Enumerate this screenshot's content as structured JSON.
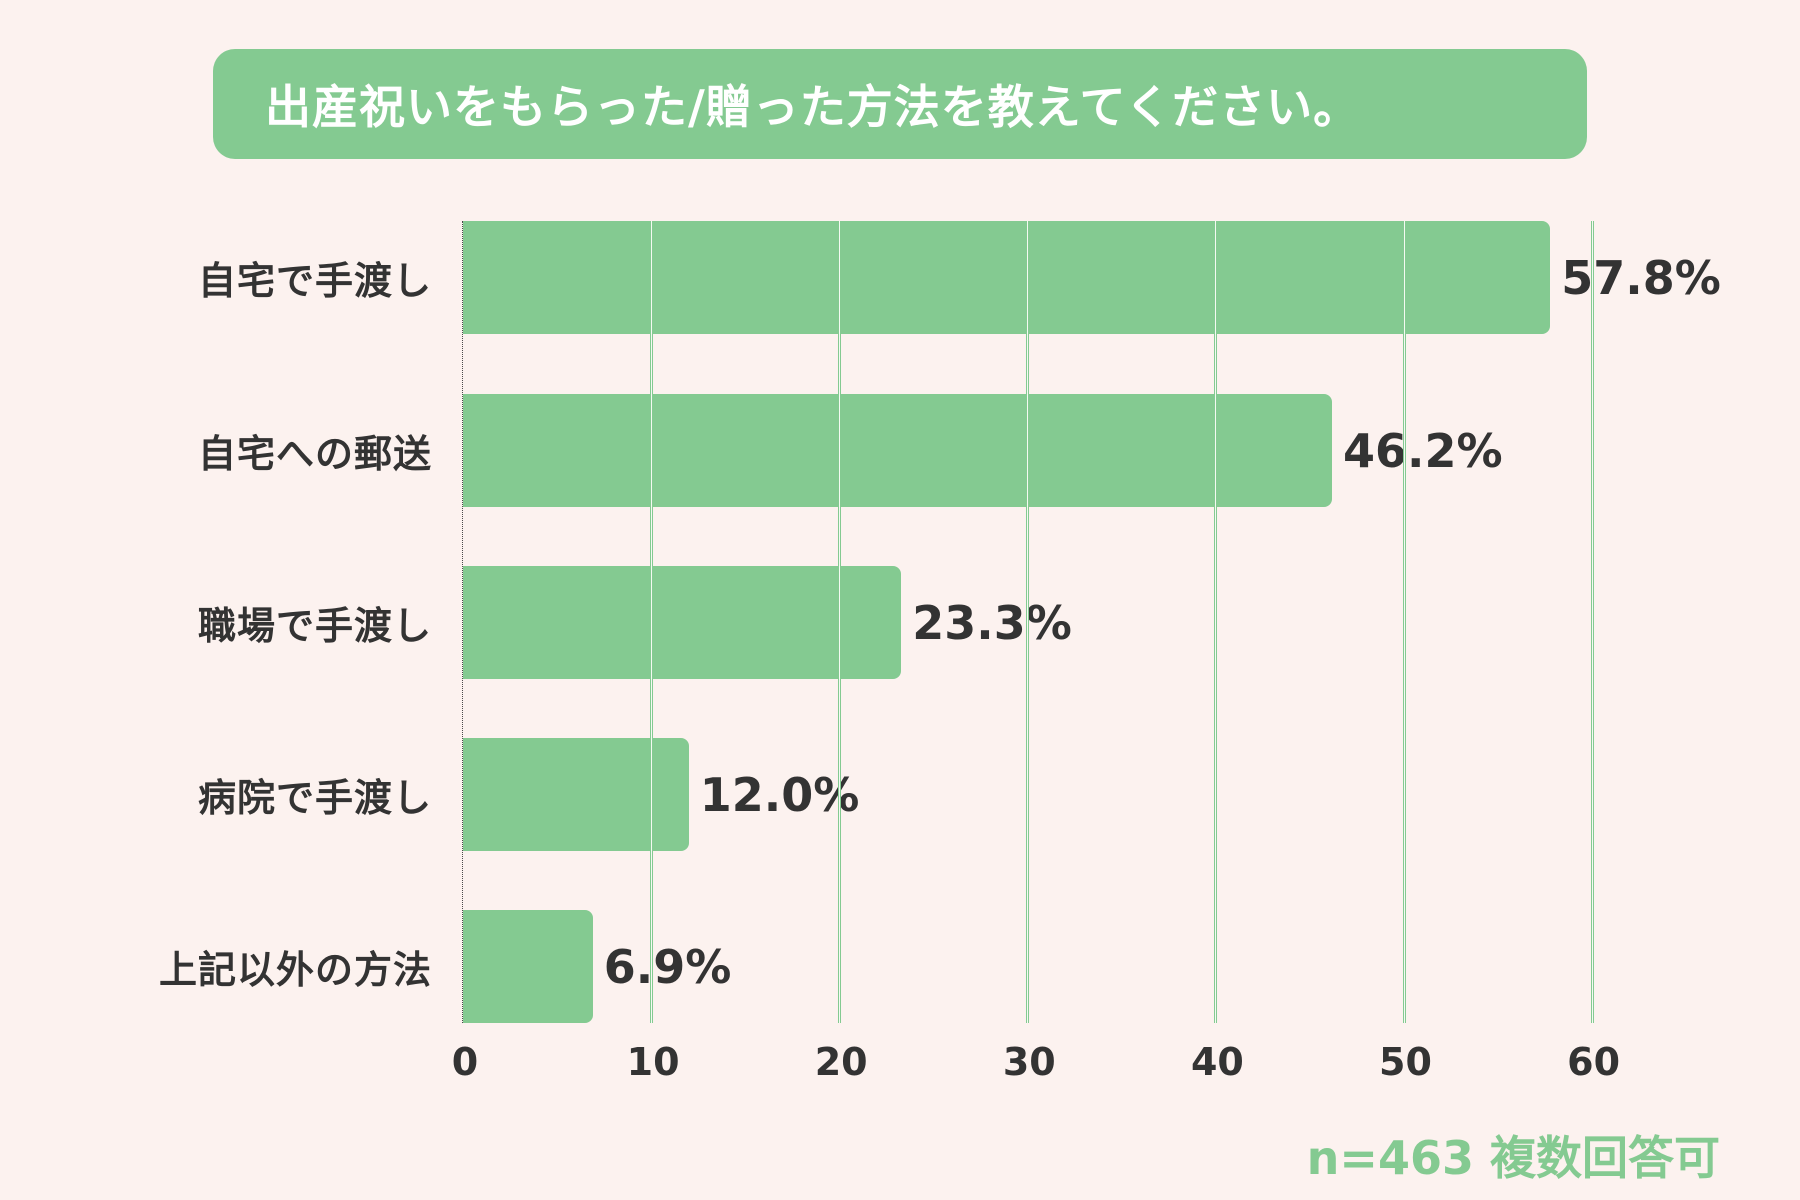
{
  "title": "出産祝いをもらった/贈った方法を教えてください。",
  "footer": "n=463 複数回答可",
  "colors": {
    "background": "#FCF2EF",
    "accent": "#84CA91",
    "text": "#333333",
    "title_text": "#FFFFFF"
  },
  "chart_data": {
    "type": "bar",
    "orientation": "horizontal",
    "title": "出産祝いをもらった/贈った方法を教えてください。",
    "categories": [
      "自宅で手渡し",
      "自宅への郵送",
      "職場で手渡し",
      "病院で手渡し",
      "上記以外の方法"
    ],
    "values": [
      57.8,
      46.2,
      23.3,
      12.0,
      6.9
    ],
    "value_labels": [
      "57.8%",
      "46.2%",
      "23.3%",
      "12.0%",
      "6.9%"
    ],
    "unit": "%",
    "xlabel": "",
    "ylabel": "",
    "xlim": [
      0,
      60
    ],
    "xticks": [
      "0",
      "10",
      "20",
      "30",
      "40",
      "50",
      "60"
    ],
    "grid": "vertical",
    "legend": null,
    "annotation": "n=463 複数回答可"
  }
}
